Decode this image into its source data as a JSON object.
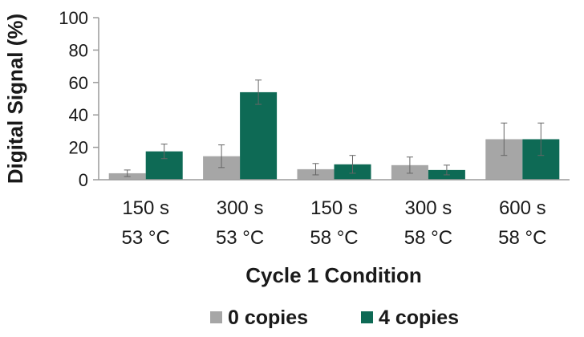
{
  "chart_data": {
    "type": "bar",
    "title": "",
    "xlabel": "Cycle 1 Condition",
    "ylabel": "Digital Signal (%)",
    "ylim": [
      0,
      100
    ],
    "yticks": [
      0,
      20,
      40,
      60,
      80,
      100
    ],
    "grid": false,
    "legend_position": "bottom",
    "categories": [
      [
        "150 s",
        "53 °C"
      ],
      [
        "300 s",
        "53 °C"
      ],
      [
        "150 s",
        "58 °C"
      ],
      [
        "300 s",
        "58 °C"
      ],
      [
        "600 s",
        "58 °C"
      ]
    ],
    "series": [
      {
        "name": "0 copies",
        "color": "#a6a6a6",
        "values": [
          4,
          14.5,
          6.5,
          9,
          25
        ],
        "errors": [
          2,
          7,
          3.5,
          5,
          10
        ]
      },
      {
        "name": "4 copies",
        "color": "#0e6a55",
        "values": [
          17.5,
          54,
          9.5,
          6,
          25
        ],
        "errors": [
          4.5,
          7.5,
          5.5,
          3,
          10
        ]
      }
    ]
  }
}
